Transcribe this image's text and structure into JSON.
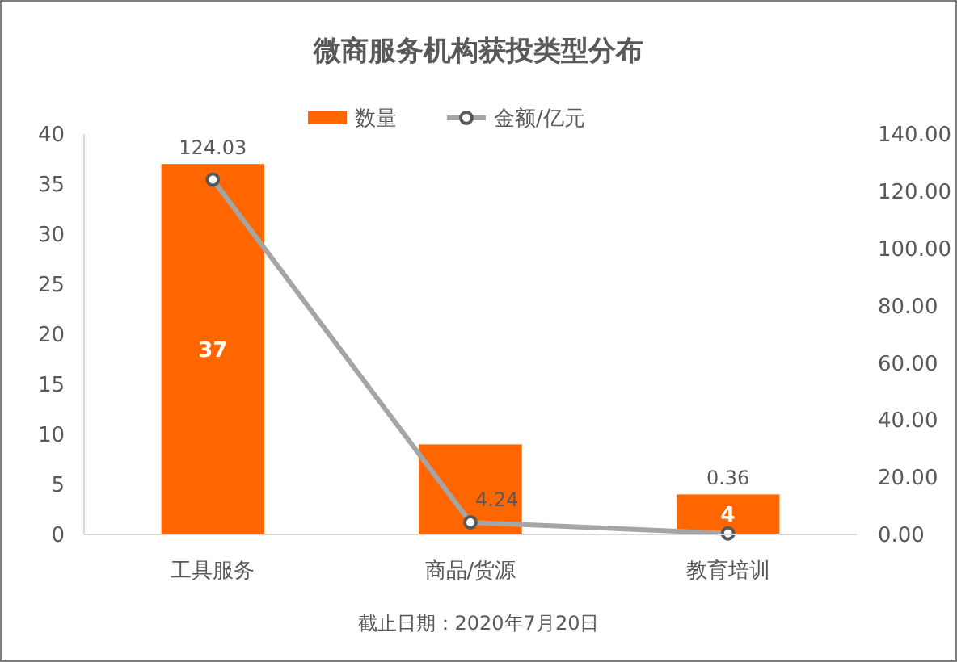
{
  "chart_data": {
    "type": "bar",
    "title": "微商服务机构获投类型分布",
    "categories": [
      "工具服务",
      "商品/货源",
      "教育培训"
    ],
    "series": [
      {
        "name": "数量",
        "color": "#ff6600",
        "values": [
          37,
          9,
          4
        ],
        "value_labels": [
          "37",
          null,
          "4"
        ]
      },
      {
        "name": "金额/亿元",
        "type": "line",
        "axis": "y2",
        "color": "#a5a5a5",
        "values": [
          124.03,
          4.24,
          0.36
        ],
        "value_labels": [
          "124.03",
          "4.24",
          "0.36"
        ]
      }
    ],
    "ylim": [
      0,
      40
    ],
    "yticks": [
      0,
      5,
      10,
      15,
      20,
      25,
      30,
      35,
      40
    ],
    "y2lim": [
      0,
      140
    ],
    "y2ticks": [
      {
        "value": 0,
        "label": "0.00"
      },
      {
        "value": 20,
        "label": "20.00"
      },
      {
        "value": 40,
        "label": "40.00"
      },
      {
        "value": 60,
        "label": "60.00"
      },
      {
        "value": 80,
        "label": "80.00"
      },
      {
        "value": 100,
        "label": "100.00"
      },
      {
        "value": 120,
        "label": "120.00"
      },
      {
        "value": 140,
        "label": "140.00"
      }
    ],
    "marker": "circle",
    "legend": "top",
    "annotations": [
      "截止日期：2020年7月20日"
    ]
  }
}
